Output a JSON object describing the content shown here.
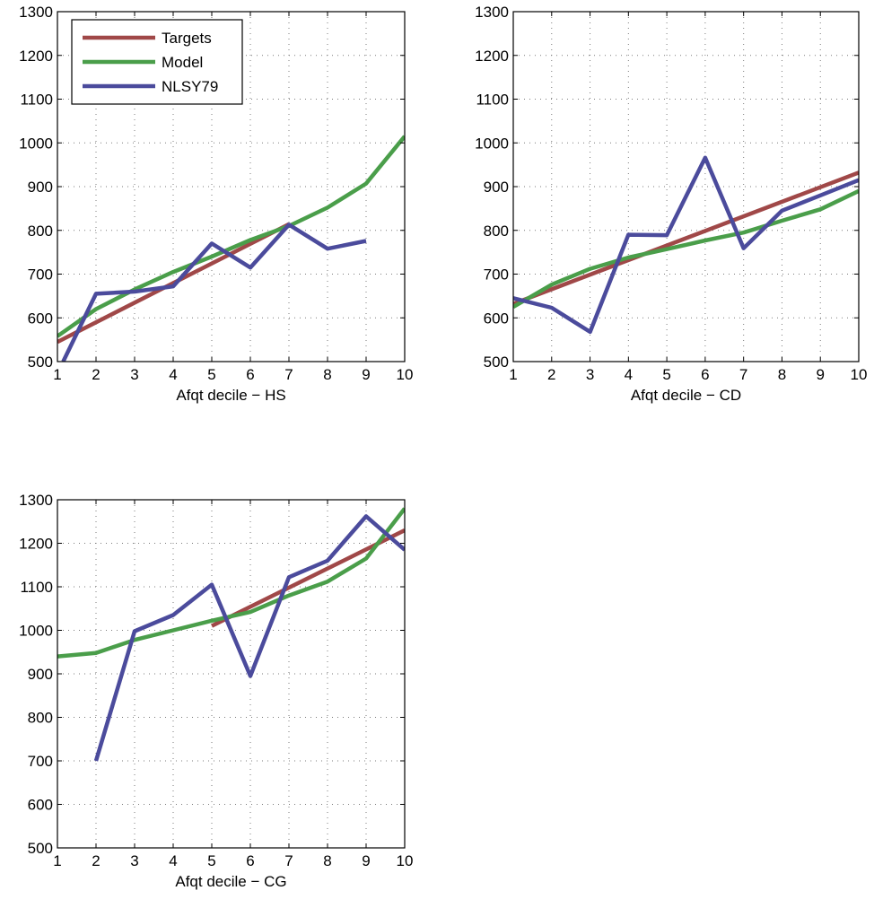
{
  "colors": {
    "Targets": "#a04848",
    "Model": "#4a9e4a",
    "NLSY79": "#4b4b9c"
  },
  "chart_data": [
    {
      "type": "line",
      "xlabel": "Afqt decile − HS",
      "ylabel": "",
      "xlim": [
        1,
        10
      ],
      "ylim": [
        500,
        1300
      ],
      "x_ticks": [
        "1",
        "2",
        "3",
        "4",
        "5",
        "6",
        "7",
        "8",
        "9",
        "10"
      ],
      "y_ticks": [
        "500",
        "600",
        "700",
        "800",
        "900",
        "1000",
        "1100",
        "1200",
        "1300"
      ],
      "grid": true,
      "legend": {
        "position": "top-left",
        "entries": [
          "Targets",
          "Model",
          "NLSY79"
        ]
      },
      "series": [
        {
          "name": "Targets",
          "x": [
            1,
            7
          ],
          "y": [
            545,
            814
          ]
        },
        {
          "name": "Model",
          "x": [
            1,
            2,
            3,
            4,
            5,
            6,
            7,
            8,
            9,
            10
          ],
          "y": [
            558,
            620,
            665,
            705,
            740,
            778,
            810,
            852,
            907,
            1015
          ]
        },
        {
          "name": "NLSY79",
          "x": [
            1.15,
            2,
            3,
            4,
            5,
            6,
            7,
            8,
            9
          ],
          "y": [
            500,
            655,
            660,
            672,
            770,
            715,
            813,
            758,
            776
          ]
        }
      ]
    },
    {
      "type": "line",
      "xlabel": "Afqt decile − CD",
      "ylabel": "",
      "xlim": [
        1,
        10
      ],
      "ylim": [
        500,
        1300
      ],
      "x_ticks": [
        "1",
        "2",
        "3",
        "4",
        "5",
        "6",
        "7",
        "8",
        "9",
        "10"
      ],
      "y_ticks": [
        "500",
        "600",
        "700",
        "800",
        "900",
        "1000",
        "1100",
        "1200",
        "1300"
      ],
      "grid": true,
      "series": [
        {
          "name": "Targets",
          "x": [
            1,
            10
          ],
          "y": [
            632,
            932
          ]
        },
        {
          "name": "Model",
          "x": [
            1,
            2,
            3,
            4,
            5,
            6,
            7,
            8,
            9,
            10
          ],
          "y": [
            625,
            676,
            712,
            738,
            757,
            777,
            795,
            822,
            848,
            890
          ]
        },
        {
          "name": "NLSY79",
          "x": [
            1,
            2,
            3,
            4,
            5,
            6,
            7,
            8,
            9,
            10
          ],
          "y": [
            645,
            623,
            568,
            790,
            789,
            966,
            759,
            845,
            880,
            915
          ]
        }
      ]
    },
    {
      "type": "line",
      "xlabel": "Afqt decile − CG",
      "ylabel": "",
      "xlim": [
        1,
        10
      ],
      "ylim": [
        500,
        1300
      ],
      "x_ticks": [
        "1",
        "2",
        "3",
        "4",
        "5",
        "6",
        "7",
        "8",
        "9",
        "10"
      ],
      "y_ticks": [
        "500",
        "600",
        "700",
        "800",
        "900",
        "1000",
        "1100",
        "1200",
        "1300"
      ],
      "grid": true,
      "series": [
        {
          "name": "Targets",
          "x": [
            5,
            10
          ],
          "y": [
            1010,
            1230
          ]
        },
        {
          "name": "Model",
          "x": [
            1,
            2,
            3,
            4,
            5,
            6,
            7,
            8,
            9,
            10
          ],
          "y": [
            940,
            948,
            978,
            1000,
            1022,
            1042,
            1080,
            1112,
            1165,
            1280
          ]
        },
        {
          "name": "NLSY79",
          "x": [
            2,
            3,
            4,
            5,
            6,
            7,
            8,
            9,
            10
          ],
          "y": [
            700,
            998,
            1035,
            1105,
            895,
            1122,
            1160,
            1262,
            1185
          ]
        }
      ]
    }
  ]
}
